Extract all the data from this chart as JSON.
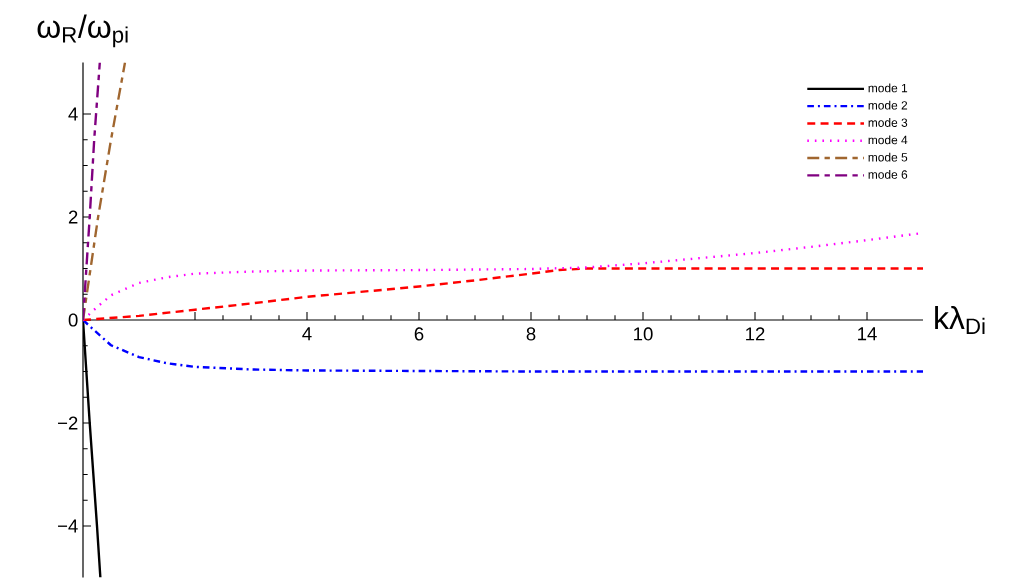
{
  "chart_data": {
    "type": "line",
    "xlabel": "kλ$_{Di}$",
    "ylabel": "ω$_{R}$/ω$_{pi}$",
    "xlim": [
      0,
      15
    ],
    "ylim": [
      -5,
      5
    ],
    "xticks": [
      {
        "value": 2,
        "label": null
      },
      4,
      6,
      8,
      10,
      12,
      14
    ],
    "yticks": [
      {
        "value": -4,
        "label": "−4"
      },
      {
        "value": -2,
        "label": "−2"
      },
      0,
      2,
      4
    ],
    "legend": "top right",
    "series": [
      {
        "name": "mode 1",
        "color": "#000000",
        "line_style": "solid",
        "x": [
          0,
          0.12,
          0.25,
          0.31
        ],
        "values": [
          0,
          -2,
          -4,
          -5
        ]
      },
      {
        "name": "mode 2",
        "color": "#0000ff",
        "line_style": "dashdot",
        "x": [
          0,
          0.2,
          0.5,
          1,
          1.5,
          2,
          3,
          4,
          6,
          8,
          15
        ],
        "values": [
          0,
          -0.2,
          -0.49,
          -0.72,
          -0.84,
          -0.91,
          -0.96,
          -0.98,
          -0.99,
          -1,
          -1
        ]
      },
      {
        "name": "mode 3",
        "color": "#ff0000",
        "line_style": "dashed",
        "x": [
          0,
          1,
          2,
          3,
          4,
          5,
          6,
          7,
          8,
          8.5,
          9,
          15
        ],
        "values": [
          0,
          0.08,
          0.2,
          0.32,
          0.45,
          0.55,
          0.65,
          0.77,
          0.9,
          0.97,
          1,
          1
        ]
      },
      {
        "name": "mode 4",
        "color": "#ff00ff",
        "line_style": "dotted",
        "x": [
          0,
          0.25,
          0.5,
          1,
          1.5,
          2,
          3,
          4,
          6,
          8,
          9,
          10,
          11,
          12,
          13,
          14,
          15
        ],
        "values": [
          0,
          0.25,
          0.48,
          0.72,
          0.83,
          0.9,
          0.94,
          0.96,
          0.97,
          0.99,
          1.02,
          1.1,
          1.2,
          1.3,
          1.42,
          1.55,
          1.69
        ]
      },
      {
        "name": "mode 5",
        "color": "#a0662f",
        "line_style": "longdashdot",
        "x": [
          0,
          0.27,
          0.5,
          0.75
        ],
        "values": [
          0,
          2,
          3.5,
          5
        ]
      },
      {
        "name": "mode 6",
        "color": "#800080",
        "line_style": "longdashdot",
        "x": [
          0,
          0.12,
          0.2,
          0.3
        ],
        "values": [
          0,
          2,
          3.5,
          5
        ]
      }
    ]
  }
}
